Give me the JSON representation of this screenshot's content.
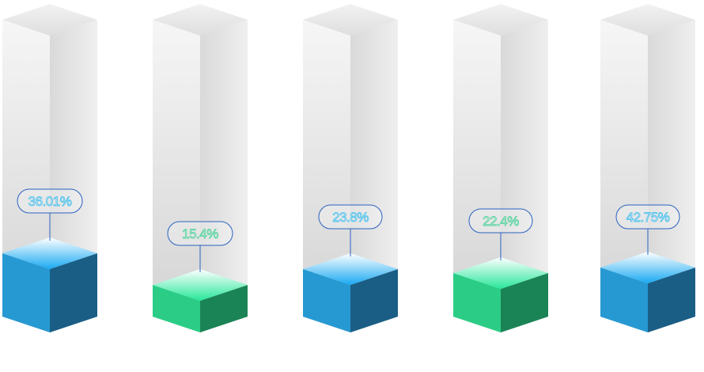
{
  "chart_data": {
    "type": "bar",
    "style": "3d-cube-columns",
    "values": [
      36.01,
      15.4,
      23.8,
      22.4,
      42.75
    ],
    "labels": [
      "36.01%",
      "15.4%",
      "23.8%",
      "22.4%",
      "42.75%"
    ],
    "fill_colors": [
      "blue",
      "green",
      "blue",
      "green",
      "blue"
    ],
    "grid": false,
    "legend": "none"
  },
  "colors": {
    "blue_front": "#2799d2",
    "blue_side": "#1a5e85",
    "blue_top_start": "#19a9f2",
    "green_front": "#2bcd86",
    "green_side": "#1b8456",
    "green_top_start": "#27e79a",
    "label_outline": "#2a62c0",
    "label_text_blue": "#58c6ef",
    "label_text_green": "#5fd6a4",
    "column_light": "#f4f4f4",
    "column_shadow": "#d4d4d4"
  }
}
